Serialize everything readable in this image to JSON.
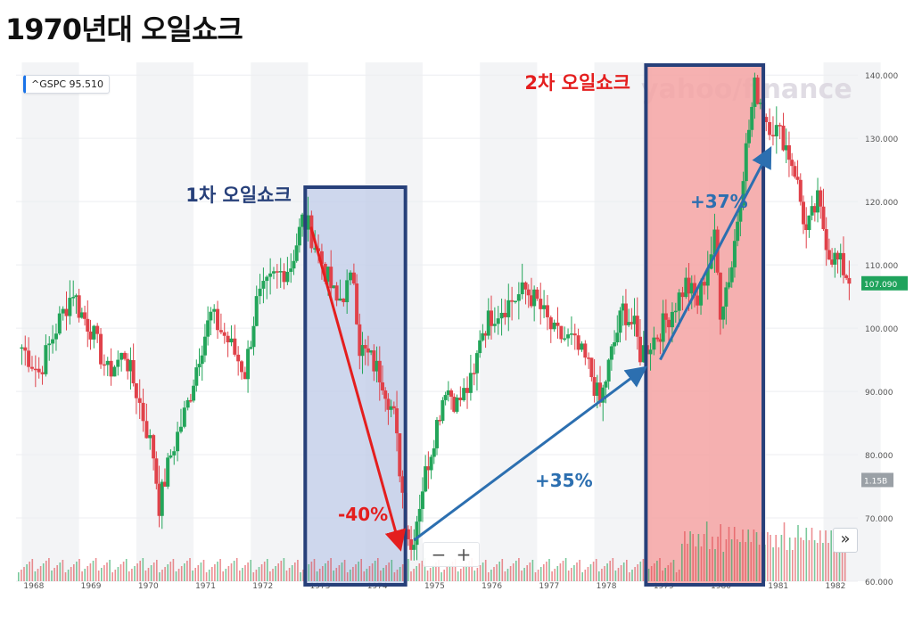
{
  "title": "1970년대 오일쇼크",
  "ticker": {
    "symbol": "^GSPC",
    "value": "95.510"
  },
  "last_price_label": "107.090",
  "volume_label": "1.15B",
  "watermark": "yahoo/finance",
  "controls": {
    "zoom_out": "−",
    "zoom_in": "+",
    "scroll": "»"
  },
  "colors": {
    "up": "#23a55a",
    "down": "#e0424a",
    "box1_fill": "#c2cde8",
    "box2_fill": "#f5a3a3",
    "box_stroke": "#27407a",
    "arrow_red": "#e41e1e",
    "arrow_blue": "#2c6fb0"
  },
  "annotations": {
    "box1_label": "1차 오일쇼크",
    "box2_label": "2차 오일쇼크",
    "pct1": "-40%",
    "pct2": "+35%",
    "pct3": "+37%"
  },
  "chart_data": {
    "type": "candlestick",
    "x_ticks": [
      "1968",
      "1969",
      "1970",
      "1971",
      "1972",
      "1973",
      "1974",
      "1975",
      "1976",
      "1977",
      "1978",
      "1979",
      "1980",
      "1981",
      "1982"
    ],
    "y_ticks": [
      "60.000",
      "70.000",
      "80.000",
      "90.000",
      "100.000",
      "110.000",
      "120.000",
      "130.000",
      "140.000"
    ],
    "ylim": [
      60,
      142
    ],
    "xlim": [
      1967.9,
      1982.6
    ],
    "series": [
      {
        "values": [
          [
            1968.0,
            97.0
          ],
          [
            1968.3,
            93.0
          ],
          [
            1968.6,
            100.0
          ],
          [
            1968.9,
            106.0
          ],
          [
            1969.0,
            103.0
          ],
          [
            1969.2,
            100.0
          ],
          [
            1969.5,
            93.0
          ],
          [
            1969.8,
            96.0
          ],
          [
            1970.0,
            90.0
          ],
          [
            1970.3,
            80.0
          ],
          [
            1970.4,
            72.0
          ],
          [
            1970.6,
            80.0
          ],
          [
            1970.9,
            88.0
          ],
          [
            1971.1,
            96.0
          ],
          [
            1971.3,
            102.0
          ],
          [
            1971.6,
            98.0
          ],
          [
            1971.9,
            93.0
          ],
          [
            1972.1,
            104.0
          ],
          [
            1972.4,
            108.0
          ],
          [
            1972.7,
            110.0
          ],
          [
            1972.9,
            117.0
          ],
          [
            1973.0,
            116.0
          ],
          [
            1973.3,
            109.0
          ],
          [
            1973.5,
            104.0
          ],
          [
            1973.8,
            108.0
          ],
          [
            1973.9,
            97.0
          ],
          [
            1974.1,
            95.0
          ],
          [
            1974.3,
            92.0
          ],
          [
            1974.5,
            86.0
          ],
          [
            1974.7,
            70.0
          ],
          [
            1974.8,
            65.0
          ],
          [
            1975.0,
            75.0
          ],
          [
            1975.2,
            83.0
          ],
          [
            1975.4,
            91.0
          ],
          [
            1975.6,
            88.0
          ],
          [
            1975.9,
            92.0
          ],
          [
            1976.0,
            99.0
          ],
          [
            1976.2,
            102.0
          ],
          [
            1976.5,
            104.0
          ],
          [
            1976.8,
            106.0
          ],
          [
            1977.0,
            104.0
          ],
          [
            1977.3,
            99.0
          ],
          [
            1977.6,
            98.0
          ],
          [
            1977.9,
            94.0
          ],
          [
            1978.1,
            88.0
          ],
          [
            1978.3,
            96.0
          ],
          [
            1978.5,
            103.0
          ],
          [
            1978.7,
            100.0
          ],
          [
            1978.8,
            96.0
          ],
          [
            1979.1,
            99.0
          ],
          [
            1979.3,
            102.0
          ],
          [
            1979.6,
            107.0
          ],
          [
            1979.8,
            104.0
          ],
          [
            1980.1,
            114.0
          ],
          [
            1980.2,
            103.0
          ],
          [
            1980.4,
            110.0
          ],
          [
            1980.6,
            125.0
          ],
          [
            1980.8,
            138.0
          ],
          [
            1980.9,
            136.0
          ],
          [
            1981.0,
            133.0
          ],
          [
            1981.3,
            130.0
          ],
          [
            1981.5,
            125.0
          ],
          [
            1981.7,
            115.0
          ],
          [
            1981.9,
            120.0
          ],
          [
            1982.1,
            112.0
          ],
          [
            1982.3,
            110.0
          ],
          [
            1982.5,
            107.0
          ]
        ]
      }
    ]
  }
}
